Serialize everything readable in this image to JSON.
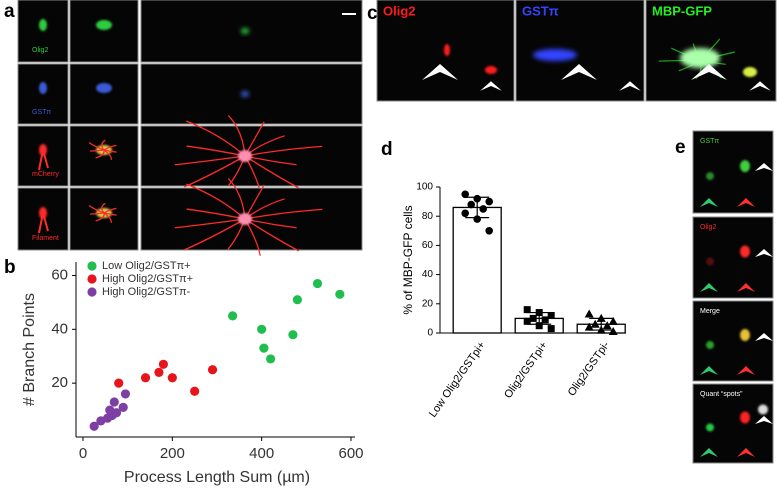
{
  "panel_labels": [
    "a",
    "b",
    "c",
    "d",
    "e"
  ],
  "panel_a": {
    "rows": [
      "Olig2",
      "GSTπ",
      "mCherry",
      "Filament"
    ],
    "colors": [
      "#2ecc40",
      "#3a5bd9",
      "#ff2a2a",
      "#ff2a2a"
    ]
  },
  "panel_c": {
    "channels": [
      "Olig2",
      "GSTπ",
      "MBP-GFP"
    ],
    "colors": [
      "#ff1a1a",
      "#3344ff",
      "#22ee22"
    ]
  },
  "panel_e": {
    "rows": [
      "GSTπ",
      "Olig2",
      "Merge",
      "Quant “spots”"
    ],
    "colors": [
      "#3ecf3e",
      "#ff2a2a",
      "#ffffff",
      "#ffffff"
    ]
  },
  "chart_data": [
    {
      "type": "scatter",
      "xlabel": "Process Length Sum (µm)",
      "ylabel": "# Branch Points",
      "xlim": [
        0,
        600
      ],
      "xticks": [
        0,
        200,
        400,
        600
      ],
      "ylim": [
        0,
        65
      ],
      "yticks": [
        20,
        40,
        60
      ],
      "legend": "top-left",
      "series": [
        {
          "name": "Low Olig2/GSTπ+",
          "color": "#1fbe4f",
          "x": [
            335,
            400,
            405,
            420,
            470,
            480,
            525,
            575
          ],
          "values": [
            45,
            40,
            33,
            29,
            38,
            51,
            57,
            53
          ]
        },
        {
          "name": "High Olig2/GSTπ+",
          "color": "#e8141b",
          "x": [
            80,
            140,
            170,
            180,
            200,
            250,
            290
          ],
          "values": [
            20,
            22,
            24,
            27,
            22,
            17,
            25
          ]
        },
        {
          "name": "High Olig2/GSTπ-",
          "color": "#7d3fa3",
          "x": [
            25,
            40,
            55,
            60,
            65,
            70,
            75,
            90,
            95
          ],
          "values": [
            4,
            6,
            7,
            10,
            8,
            13,
            9,
            11,
            16
          ]
        }
      ]
    },
    {
      "type": "bar",
      "ylabel": "% of MBP-GFP  cells",
      "categories": [
        "Low Olig2/GSTpi+",
        "Olig2/GSTpi+",
        "Olig2/GSTpi-"
      ],
      "values": [
        86,
        10,
        6
      ],
      "errors": [
        7,
        4,
        4
      ],
      "points": [
        [
          95,
          92,
          90,
          88,
          85,
          82,
          78,
          70
        ],
        [
          16,
          14,
          12,
          10,
          9,
          8,
          5,
          3
        ],
        [
          13,
          10,
          8,
          6,
          5,
          4,
          2,
          1
        ]
      ],
      "markers": [
        "circle",
        "square",
        "triangle"
      ],
      "color": "#ffffff",
      "ylim": [
        0,
        100
      ],
      "yticks": [
        0,
        20,
        40,
        60,
        80,
        100
      ]
    }
  ]
}
